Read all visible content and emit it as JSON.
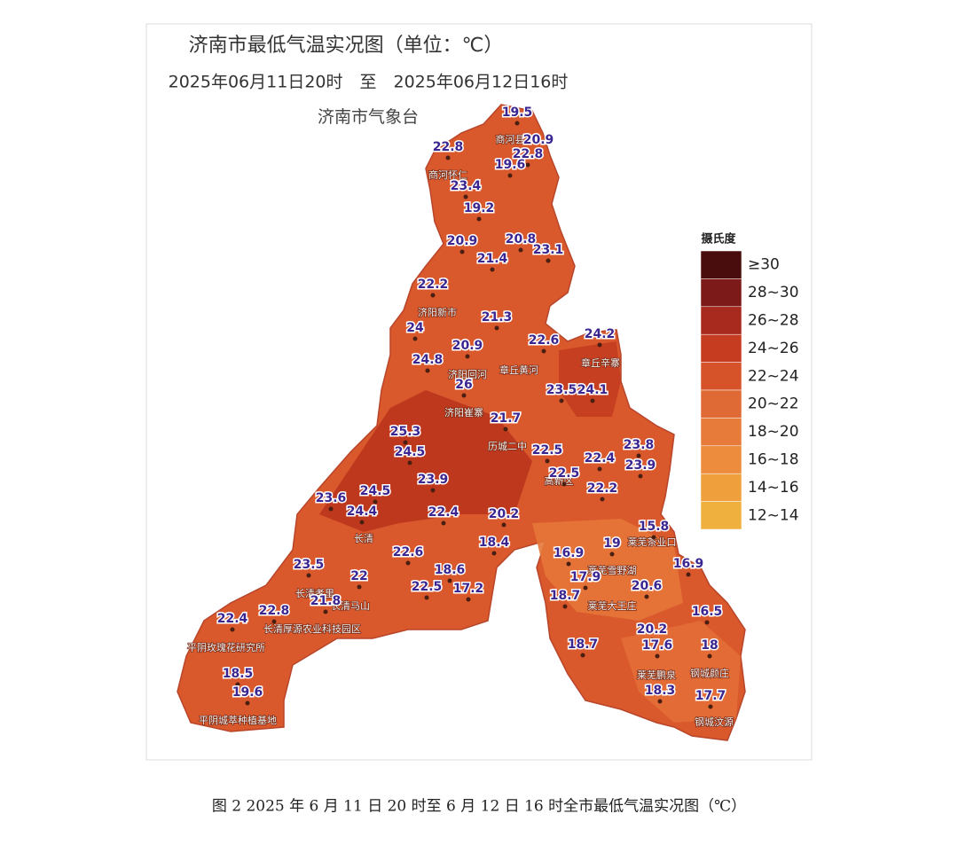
{
  "header": {
    "title": "济南市最低气温实况图（单位：℃）",
    "period": "2025年06月11日20时　至　2025年06月12日16时",
    "agency": "济南市气象台"
  },
  "legend": {
    "title": "摄氏度",
    "items": [
      {
        "label": "≥30",
        "color": "#4a0d0d"
      },
      {
        "label": "28~30",
        "color": "#7c1a1a"
      },
      {
        "label": "26~28",
        "color": "#a82a1e"
      },
      {
        "label": "24~26",
        "color": "#c53c20"
      },
      {
        "label": "22~24",
        "color": "#d6532a"
      },
      {
        "label": "20~22",
        "color": "#df6a35"
      },
      {
        "label": "18~20",
        "color": "#e77b3a"
      },
      {
        "label": "16~18",
        "color": "#ec8c3c"
      },
      {
        "label": "14~16",
        "color": "#efa03c"
      },
      {
        "label": "12~14",
        "color": "#f0b03e"
      }
    ]
  },
  "stations": [
    19.5,
    20.9,
    22.8,
    22.8,
    19.6,
    23.4,
    19.2,
    20.9,
    20.8,
    23.1,
    21.4,
    22.2,
    21.3,
    24,
    22.6,
    24.2,
    20.9,
    24.8,
    26,
    23.5,
    24.1,
    21.7,
    23.8,
    25.3,
    22.5,
    24.5,
    22.4,
    23.9,
    23.9,
    22.5,
    24.5,
    22.2,
    23.6,
    24.4,
    22.4,
    20.2,
    15.8,
    18.4,
    19,
    16.9,
    22.6,
    16.9,
    23.5,
    18.6,
    17.9,
    22,
    20.6,
    18.7,
    22.5,
    17.2,
    21.8,
    22.8,
    22.4,
    16.5,
    20.2,
    18,
    17.6,
    18.7,
    18.5,
    19.6,
    18.3,
    17.7
  ],
  "place_names": [
    "商河县",
    "商河怀仁",
    "济阳新市",
    "济阳回河",
    "章丘黄河",
    "章丘辛寨",
    "济阳崔寨",
    "历城二中",
    "高新区",
    "长清",
    "莱芜茶业口",
    "莱芜雪野湖",
    "莱芜大王庄",
    "长清孝里",
    "长清马山",
    "长清厚源农业科技园区",
    "平阴玫瑰花研究所",
    "平阴城萃种植基地",
    "莱芜鹏泉",
    "钢城颜庄",
    "钢城汶源"
  ],
  "caption": "图 2  2025 年 6 月 11 日 20 时至 6 月 12 日 16 时全市最低气温实况图（℃）"
}
